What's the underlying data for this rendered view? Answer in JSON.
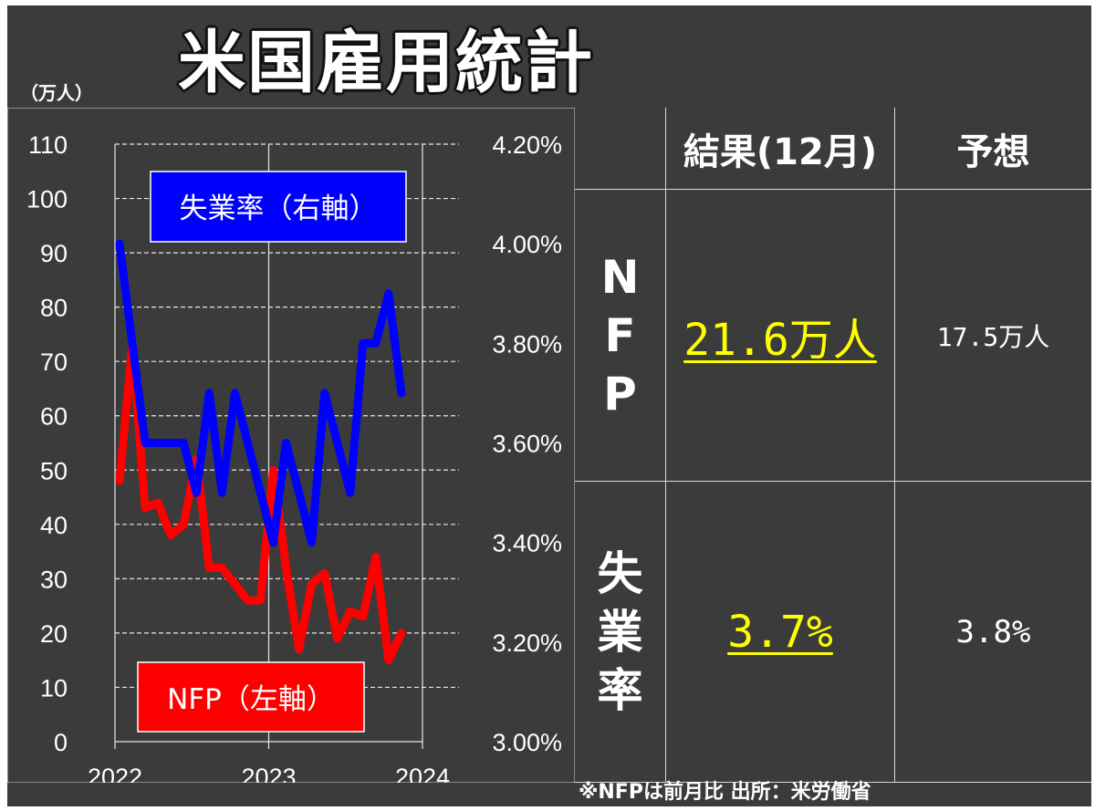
{
  "title": "米国雇用統計",
  "unit_label": "（万人）",
  "footnote": "※NFPは前月比 出所：米労働省",
  "chart_data": {
    "type": "line",
    "title": "米国雇用統計",
    "x_ticks": [
      "2022",
      "2023",
      "2024"
    ],
    "left_axis": {
      "label": "（万人）",
      "ylim": [
        0,
        110
      ],
      "ticks": [
        "0",
        "10",
        "20",
        "30",
        "40",
        "50",
        "60",
        "70",
        "80",
        "90",
        "100",
        "110"
      ]
    },
    "right_axis": {
      "ylim": [
        3.0,
        4.2
      ],
      "ticks": [
        "3.00%",
        "3.20%",
        "3.40%",
        "3.60%",
        "3.80%",
        "4.00%",
        "4.20%"
      ]
    },
    "series": [
      {
        "name": "NFP（左軸）",
        "axis": "left",
        "color": "#ff0000",
        "x": [
          "2022-01",
          "2022-02",
          "2022-03",
          "2022-04",
          "2022-05",
          "2022-06",
          "2022-07",
          "2022-08",
          "2022-09",
          "2022-10",
          "2022-11",
          "2022-12",
          "2023-01",
          "2023-02",
          "2023-03",
          "2023-04",
          "2023-05",
          "2023-06",
          "2023-07",
          "2023-08",
          "2023-09",
          "2023-10",
          "2023-11"
        ],
        "values": [
          48,
          73,
          43,
          44,
          38,
          40,
          52,
          32,
          32,
          29,
          26,
          26,
          50,
          32,
          17,
          29,
          31,
          19,
          24,
          23,
          34,
          15,
          20
        ]
      },
      {
        "name": "失業率（右軸）",
        "axis": "right",
        "color": "#0000ff",
        "x": [
          "2022-01",
          "2022-02",
          "2022-03",
          "2022-04",
          "2022-05",
          "2022-06",
          "2022-07",
          "2022-08",
          "2022-09",
          "2022-10",
          "2022-11",
          "2022-12",
          "2023-01",
          "2023-02",
          "2023-03",
          "2023-04",
          "2023-05",
          "2023-06",
          "2023-07",
          "2023-08",
          "2023-09",
          "2023-10",
          "2023-11"
        ],
        "values": [
          4.0,
          3.8,
          3.6,
          3.6,
          3.6,
          3.6,
          3.5,
          3.7,
          3.5,
          3.7,
          3.6,
          3.5,
          3.4,
          3.6,
          3.5,
          3.4,
          3.7,
          3.6,
          3.5,
          3.8,
          3.8,
          3.9,
          3.7
        ]
      }
    ]
  },
  "table": {
    "header": {
      "result": "結果(12月)",
      "forecast": "予想"
    },
    "rows": [
      {
        "label": "NFP",
        "result": "21.6万人",
        "forecast": "17.5万人"
      },
      {
        "label": "失業率",
        "result": "3.7%",
        "forecast": "3.8%"
      }
    ]
  },
  "colors": {
    "background": "#3b3b3b",
    "nfp": "#ff0000",
    "unemployment": "#0000ff",
    "highlight": "#ffff00"
  }
}
